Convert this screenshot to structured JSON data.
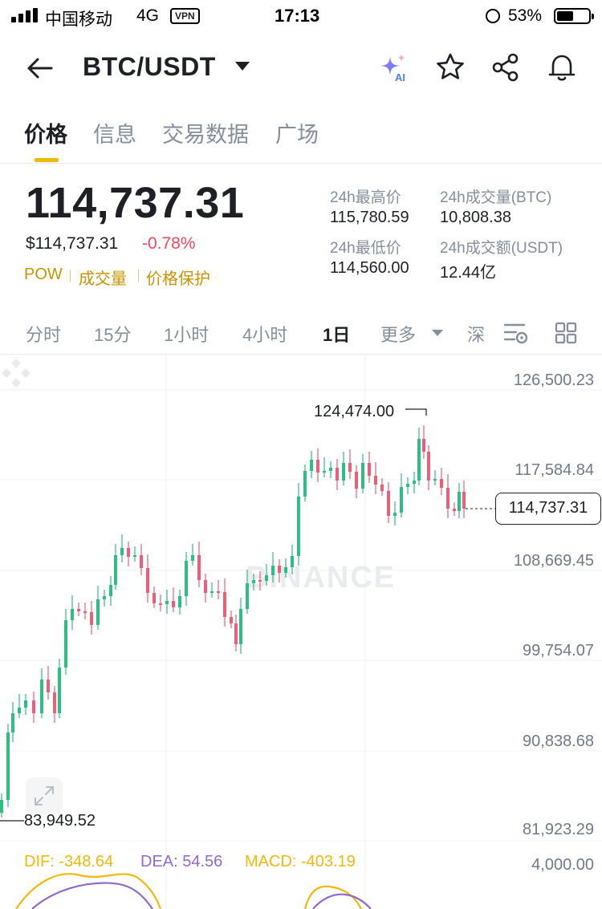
{
  "status_bar": {
    "carrier": "中国移动",
    "network": "4G",
    "vpn": "VPN",
    "time": "17:13",
    "battery_percent": "53%",
    "battery_level": 0.53
  },
  "header": {
    "pair": "BTC/USDT",
    "ai_badge": "AI"
  },
  "tabs": [
    "价格",
    "信息",
    "交易数据",
    "广场"
  ],
  "price": {
    "last": "114,737.31",
    "usd": "$114,737.31",
    "change": "-0.78%",
    "tags": [
      "POW",
      "成交量",
      "价格保护"
    ]
  },
  "stats": {
    "high_label": "24h最高价",
    "high_value": "115,780.59",
    "low_label": "24h最低价",
    "low_value": "114,560.00",
    "vol_btc_label": "24h成交量(BTC)",
    "vol_btc_value": "10,808.38",
    "vol_usdt_label": "24h成交额(USDT)",
    "vol_usdt_value": "12.44亿"
  },
  "intervals": [
    "分时",
    "15分",
    "1小时",
    "4小时",
    "1日",
    "更多",
    "深"
  ],
  "active_interval": "1日",
  "chart_data": {
    "type": "candlestick",
    "y_axis_ticks": [
      "126,500.23",
      "117,584.84",
      "108,669.45",
      "99,754.07",
      "90,838.68",
      "81,923.29"
    ],
    "current_price": "114,737.31",
    "marked_high": "124,474.00",
    "marked_low": "83,949.52",
    "watermark": "BINANCE",
    "colors": {
      "up": "#2ebd85",
      "down": "#e8607a"
    }
  },
  "macd": {
    "dif": "DIF: -348.64",
    "dea": "DEA: 54.56",
    "macd": "MACD: -403.19",
    "axis_top": "4,000.00",
    "colors": {
      "dif": "#f0b90b",
      "dea": "#8f6ac9",
      "macd": "#f0b90b"
    }
  }
}
